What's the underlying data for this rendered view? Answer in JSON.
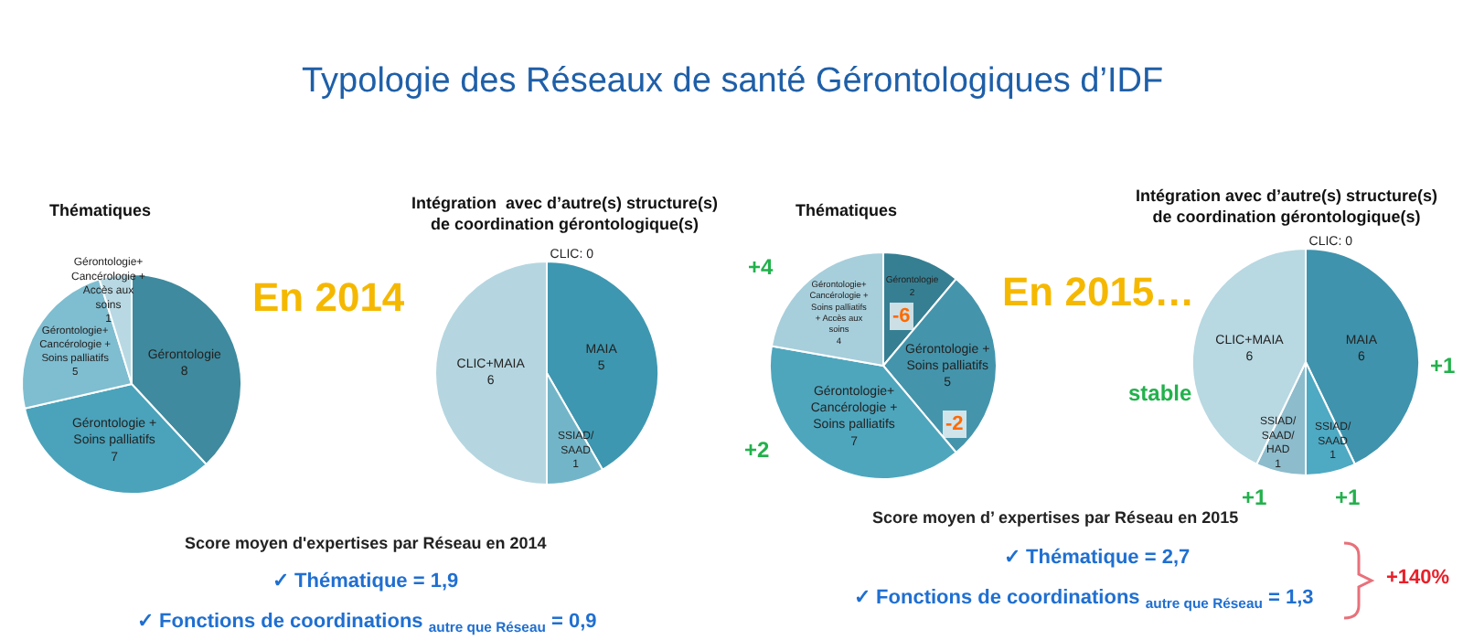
{
  "chart_data": [
    {
      "type": "other",
      "title": "Typologie des Réseaux de santé Gérontologiques d’IDF"
    },
    {
      "type": "pie",
      "title": "Thématiques",
      "categories": [
        "Gérontologie",
        "Gérontologie + Soins palliatifs",
        "Gérontologie+ Cancérologie + Soins palliatifs",
        "Gérontologie+ Cancérologie + Accès aux soins"
      ],
      "values": [
        8,
        7,
        5,
        1
      ],
      "colors": [
        "#3f8a9e",
        "#4aa3bb",
        "#7fbdd0",
        "#b8d9e3"
      ],
      "data_labels": true,
      "annotations": [
        "En 2014",
        "Score moyen d'expertises par Réseau en 2014",
        "✓ Thématique = 1,9",
        "✓ Fonctions de coordinations $_{autre que Réseau}$ = 0,9"
      ]
    },
    {
      "type": "pie",
      "title": "Intégration  avec d’autre(s) structure(s)\nde coordination gérontologique(s)",
      "categories": [
        "CLIC: 0",
        "MAIA",
        "SSIAD/ SAAD",
        "CLIC+MAIA"
      ],
      "values": [
        0,
        5,
        1,
        6
      ],
      "colors": [
        "#3e97b0",
        "#3e97b0",
        "#73b5c8",
        "#b5d6e0"
      ],
      "data_labels": true
    },
    {
      "type": "pie",
      "title": "Thématiques",
      "categories": [
        "Gérontologie",
        "Gérontologie + Soins palliatifs",
        "Gérontologie+ Cancérologie + Soins palliatifs",
        "Gérontologie+ Cancérologie + Soins palliatifs + Accès aux soins"
      ],
      "values": [
        2,
        5,
        7,
        4
      ],
      "colors": [
        "#367f93",
        "#4495ac",
        "#4ea6bd",
        "#a7cedb"
      ],
      "data_labels": true,
      "annotations": [
        "+4",
        "-6",
        "-2",
        "+2",
        "En 2015…",
        "Score moyen d’ expertises par Réseau en 2015",
        "✓ Thématique = 2,7",
        "✓ Fonctions de coordinations $_{autre que Réseau}$ = 1,3",
        "+140%"
      ]
    },
    {
      "type": "pie",
      "title": "Intégration avec d’autre(s) structure(s)\nde coordination gérontologique(s)",
      "categories": [
        "CLIC: 0",
        "MAIA",
        "SSIAD/ SAAD",
        "SSIAD/ SAAD/ HAD",
        "CLIC+MAIA"
      ],
      "values": [
        0,
        6,
        1,
        1,
        6
      ],
      "colors": [
        "#3f93ad",
        "#3f93ad",
        "#4ea9c3",
        "#8dbccc",
        "#b8d8e2"
      ],
      "data_labels": true,
      "annotations": [
        "stable",
        "+1",
        "+1",
        "+1"
      ]
    }
  ]
}
